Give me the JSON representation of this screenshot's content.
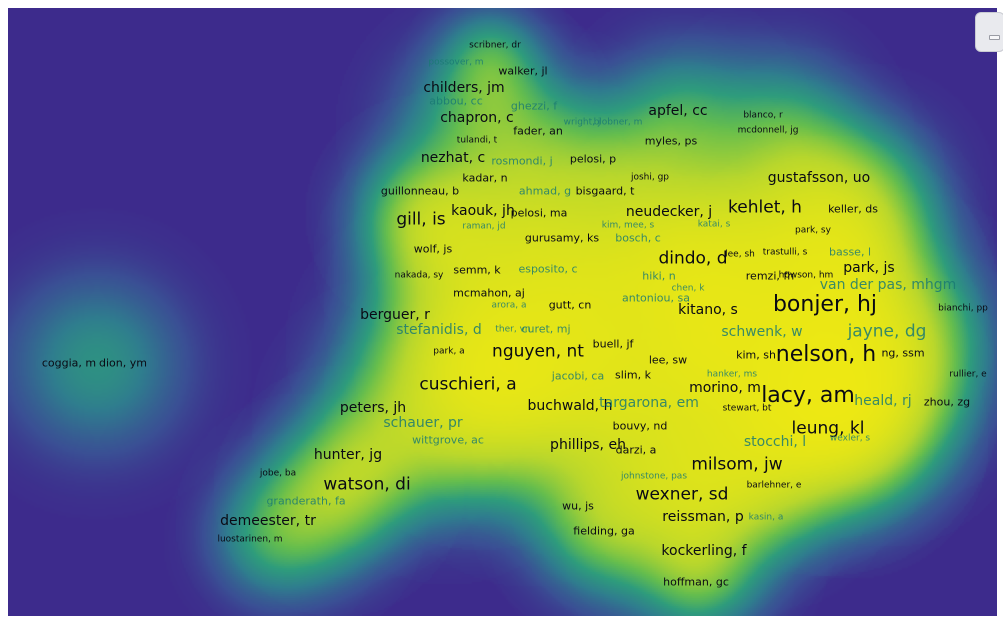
{
  "colors": {
    "background": "#3d2b8c",
    "ramp": [
      "#3d2b8c",
      "#3a4f94",
      "#2f7d8e",
      "#2e9c7c",
      "#64bd4e",
      "#b9d72c",
      "#f3ea10"
    ],
    "label_dim": "#1a7a74",
    "label_dark": "#0a0a14"
  },
  "corner_widget_icon": "minimize-icon",
  "nodes": [
    {
      "label": "scribner, dr",
      "size": "xs",
      "tone": "dark"
    },
    {
      "label": "possover, m",
      "size": "xs",
      "tone": "dim"
    },
    {
      "label": "walker, jl",
      "size": "s",
      "tone": "dark"
    },
    {
      "label": "childers, jm",
      "size": "m",
      "tone": "dark"
    },
    {
      "label": "abbou, cc",
      "size": "s",
      "tone": "dim"
    },
    {
      "label": "ghezzi, f",
      "size": "s",
      "tone": "dim"
    },
    {
      "label": "apfel, cc",
      "size": "m",
      "tone": "dark"
    },
    {
      "label": "blanco, r",
      "size": "xs",
      "tone": "dark"
    },
    {
      "label": "chapron, c",
      "size": "m",
      "tone": "dark"
    },
    {
      "label": "fader, an",
      "size": "s",
      "tone": "dark"
    },
    {
      "label": "wright, j",
      "size": "xs",
      "tone": "dim"
    },
    {
      "label": "blobner, m",
      "size": "xs",
      "tone": "dim"
    },
    {
      "label": "mcdonnell, jg",
      "size": "xs",
      "tone": "dark"
    },
    {
      "label": "tulandi, t",
      "size": "xs",
      "tone": "dark"
    },
    {
      "label": "myles, ps",
      "size": "s",
      "tone": "dark"
    },
    {
      "label": "nezhat, c",
      "size": "m",
      "tone": "dark"
    },
    {
      "label": "rosmondi, j",
      "size": "s",
      "tone": "dim"
    },
    {
      "label": "pelosi, p",
      "size": "s",
      "tone": "dark"
    },
    {
      "label": "kadar, n",
      "size": "s",
      "tone": "dark"
    },
    {
      "label": "joshi, gp",
      "size": "xs",
      "tone": "dark"
    },
    {
      "label": "gustafsson, uo",
      "size": "m",
      "tone": "dark"
    },
    {
      "label": "guillonneau, b",
      "size": "s",
      "tone": "dark"
    },
    {
      "label": "ahmad, g",
      "size": "s",
      "tone": "dim"
    },
    {
      "label": "bisgaard, t",
      "size": "s",
      "tone": "dark"
    },
    {
      "label": "gill, is",
      "size": "l",
      "tone": "dark"
    },
    {
      "label": "kaouk, jh",
      "size": "m",
      "tone": "dark"
    },
    {
      "label": "pelosi, ma",
      "size": "s",
      "tone": "dark"
    },
    {
      "label": "neudecker, j",
      "size": "m",
      "tone": "dark"
    },
    {
      "label": "kehlet, h",
      "size": "l",
      "tone": "dark"
    },
    {
      "label": "keller, ds",
      "size": "s",
      "tone": "dark"
    },
    {
      "label": "raman, jd",
      "size": "xs",
      "tone": "dim"
    },
    {
      "label": "kim, mee, s",
      "size": "xs",
      "tone": "dim"
    },
    {
      "label": "katai, s",
      "size": "xs",
      "tone": "dim"
    },
    {
      "label": "park, sy",
      "size": "xs",
      "tone": "dark"
    },
    {
      "label": "gurusamy, ks",
      "size": "s",
      "tone": "dark"
    },
    {
      "label": "bosch, c",
      "size": "s",
      "tone": "dim"
    },
    {
      "label": "wolf, js",
      "size": "s",
      "tone": "dark"
    },
    {
      "label": "dindo, d",
      "size": "l",
      "tone": "dark"
    },
    {
      "label": "lee, sh",
      "size": "xs",
      "tone": "dark"
    },
    {
      "label": "trastulli, s",
      "size": "xs",
      "tone": "dark"
    },
    {
      "label": "basse, l",
      "size": "s",
      "tone": "dim"
    },
    {
      "label": "nakada, sy",
      "size": "xs",
      "tone": "dark"
    },
    {
      "label": "semm, k",
      "size": "s",
      "tone": "dark"
    },
    {
      "label": "esposito, c",
      "size": "s",
      "tone": "dim"
    },
    {
      "label": "hiki, n",
      "size": "s",
      "tone": "dim"
    },
    {
      "label": "remzi, fh",
      "size": "s",
      "tone": "dark"
    },
    {
      "label": "howson, hm",
      "size": "xs",
      "tone": "dark"
    },
    {
      "label": "park, js",
      "size": "m",
      "tone": "dark"
    },
    {
      "label": "chen, k",
      "size": "xs",
      "tone": "dim"
    },
    {
      "label": "van der pas, mhgm",
      "size": "m",
      "tone": "dim"
    },
    {
      "label": "mcmahon, aj",
      "size": "s",
      "tone": "dark"
    },
    {
      "label": "antoniou, sa",
      "size": "s",
      "tone": "dim"
    },
    {
      "label": "arora, a",
      "size": "xs",
      "tone": "dim"
    },
    {
      "label": "gutt, cn",
      "size": "s",
      "tone": "dark"
    },
    {
      "label": "bonjer, hj",
      "size": "xl",
      "tone": "dark"
    },
    {
      "label": "berguer, r",
      "size": "m",
      "tone": "dark"
    },
    {
      "label": "kitano, s",
      "size": "m",
      "tone": "dark"
    },
    {
      "label": "bianchi, pp",
      "size": "xs",
      "tone": "dark"
    },
    {
      "label": "stefanidis, d",
      "size": "m",
      "tone": "dim"
    },
    {
      "label": "ther, vn",
      "size": "xs",
      "tone": "dim"
    },
    {
      "label": "curet, mj",
      "size": "s",
      "tone": "dim"
    },
    {
      "label": "schwenk, w",
      "size": "m",
      "tone": "dim"
    },
    {
      "label": "jayne, dg",
      "size": "l",
      "tone": "dim"
    },
    {
      "label": "park, a",
      "size": "xs",
      "tone": "dark"
    },
    {
      "label": "nguyen, nt",
      "size": "l",
      "tone": "dark"
    },
    {
      "label": "buell, jf",
      "size": "s",
      "tone": "dark"
    },
    {
      "label": "lee, sw",
      "size": "s",
      "tone": "dark"
    },
    {
      "label": "kim, sh",
      "size": "s",
      "tone": "dark"
    },
    {
      "label": "nelson, h",
      "size": "xl",
      "tone": "dark"
    },
    {
      "label": "ng, ssm",
      "size": "s",
      "tone": "dark"
    },
    {
      "label": "coggia, m",
      "size": "s",
      "tone": "dark"
    },
    {
      "label": "dion, ym",
      "size": "s",
      "tone": "dark"
    },
    {
      "label": "jacobi, ca",
      "size": "s",
      "tone": "dim"
    },
    {
      "label": "slim, k",
      "size": "s",
      "tone": "dark"
    },
    {
      "label": "hanker, ms",
      "size": "xs",
      "tone": "dim"
    },
    {
      "label": "rullier, e",
      "size": "xs",
      "tone": "dark"
    },
    {
      "label": "cuschieri, a",
      "size": "l",
      "tone": "dark"
    },
    {
      "label": "morino, m",
      "size": "m",
      "tone": "dark"
    },
    {
      "label": "lacy, am",
      "size": "xl",
      "tone": "dark"
    },
    {
      "label": "buchwald, h",
      "size": "m",
      "tone": "dark"
    },
    {
      "label": "targarona, em",
      "size": "m",
      "tone": "dim"
    },
    {
      "label": "stewart, bt",
      "size": "xs",
      "tone": "dark"
    },
    {
      "label": "heald, rj",
      "size": "m",
      "tone": "dim"
    },
    {
      "label": "zhou, zg",
      "size": "s",
      "tone": "dark"
    },
    {
      "label": "peters, jh",
      "size": "m",
      "tone": "dark"
    },
    {
      "label": "schauer, pr",
      "size": "m",
      "tone": "dim"
    },
    {
      "label": "bouvy, nd",
      "size": "s",
      "tone": "dark"
    },
    {
      "label": "leung, kl",
      "size": "l",
      "tone": "dark"
    },
    {
      "label": "wittgrove, ac",
      "size": "s",
      "tone": "dim"
    },
    {
      "label": "phillips, eh",
      "size": "m",
      "tone": "dark"
    },
    {
      "label": "darzi, a",
      "size": "s",
      "tone": "dark"
    },
    {
      "label": "stocchi, l",
      "size": "m",
      "tone": "dim"
    },
    {
      "label": "wexler, s",
      "size": "xs",
      "tone": "dim"
    },
    {
      "label": "hunter, jg",
      "size": "m",
      "tone": "dark"
    },
    {
      "label": "milsom, jw",
      "size": "l",
      "tone": "dark"
    },
    {
      "label": "johnstone, pas",
      "size": "xs",
      "tone": "dim"
    },
    {
      "label": "jobe, ba",
      "size": "xs",
      "tone": "dark"
    },
    {
      "label": "watson, di",
      "size": "l",
      "tone": "dark"
    },
    {
      "label": "barlehner, e",
      "size": "xs",
      "tone": "dark"
    },
    {
      "label": "wexner, sd",
      "size": "l",
      "tone": "dark"
    },
    {
      "label": "granderath, fa",
      "size": "s",
      "tone": "dim"
    },
    {
      "label": "wu, js",
      "size": "s",
      "tone": "dark"
    },
    {
      "label": "demeester, tr",
      "size": "m",
      "tone": "dark"
    },
    {
      "label": "reissman, p",
      "size": "m",
      "tone": "dark"
    },
    {
      "label": "kasin, a",
      "size": "xs",
      "tone": "dim"
    },
    {
      "label": "luostarinen, m",
      "size": "xs",
      "tone": "dark"
    },
    {
      "label": "fielding, ga",
      "size": "s",
      "tone": "dark"
    },
    {
      "label": "kockerling, f",
      "size": "m",
      "tone": "dark"
    },
    {
      "label": "hoffman, gc",
      "size": "s",
      "tone": "dark"
    }
  ]
}
